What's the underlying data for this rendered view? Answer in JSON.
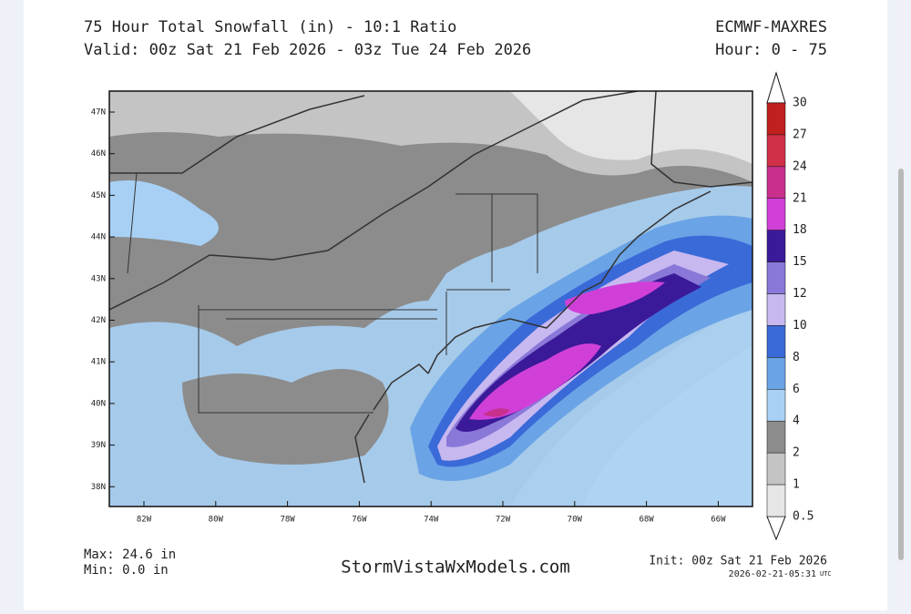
{
  "header": {
    "title": "75 Hour Total Snowfall (in) - 10:1 Ratio",
    "valid": "Valid: 00z Sat 21 Feb 2026 - 03z Tue 24 Feb 2026",
    "model": "ECMWF-MAXRES",
    "hour": "Hour: 0 - 75"
  },
  "map": {
    "lat_labels": [
      "47N",
      "46N",
      "45N",
      "44N",
      "43N",
      "42N",
      "41N",
      "40N",
      "39N",
      "38N"
    ],
    "lon_labels": [
      "82W",
      "80W",
      "78W",
      "76W",
      "74W",
      "72W",
      "70W",
      "68W",
      "66W"
    ]
  },
  "colorbar": {
    "labels": [
      "30",
      "27",
      "24",
      "21",
      "18",
      "15",
      "12",
      "10",
      "8",
      "6",
      "4",
      "2",
      "1",
      "0.5"
    ],
    "colors": [
      "#c0201e",
      "#d03048",
      "#c8308c",
      "#d040d8",
      "#3a1a98",
      "#8a78d8",
      "#c8b8f0",
      "#3a6ad8",
      "#6aa4e6",
      "#a8d0f4",
      "#8c8c8c",
      "#c4c4c4",
      "#e6e6e6"
    ]
  },
  "footer": {
    "max": "Max: 24.6 in",
    "min": "Min: 0.0 in",
    "site": "StormVistaWxModels.com",
    "init": "Init: 00z Sat 21 Feb 2026",
    "timestamp": "2026-02-21-05:31",
    "utc": "UTC"
  }
}
